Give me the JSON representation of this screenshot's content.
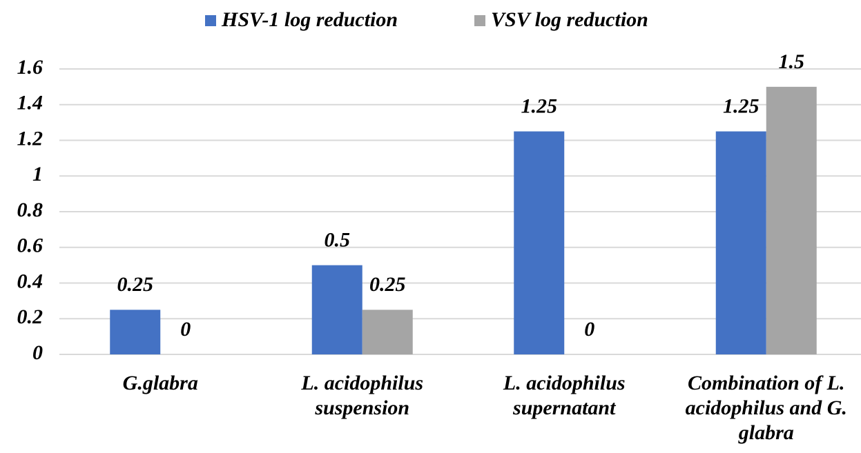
{
  "chart_data": {
    "type": "bar",
    "categories": [
      "G.glabra",
      "L. acidophilus suspension",
      "L. acidophilus supernatant",
      "Combination of L. acidophilus and G. glabra"
    ],
    "series": [
      {
        "name": "HSV-1 log reduction",
        "color": "#4472c4",
        "values": [
          0.25,
          0.5,
          1.25,
          1.25
        ]
      },
      {
        "name": "VSV log reduction",
        "color": "#a5a5a5",
        "values": [
          0,
          0.25,
          0,
          1.5
        ]
      }
    ],
    "ylim": [
      0,
      1.6
    ],
    "yticks": [
      0,
      0.2,
      0.4,
      0.6,
      0.8,
      1,
      1.2,
      1.4,
      1.6
    ],
    "grid": true,
    "legend": "top"
  }
}
